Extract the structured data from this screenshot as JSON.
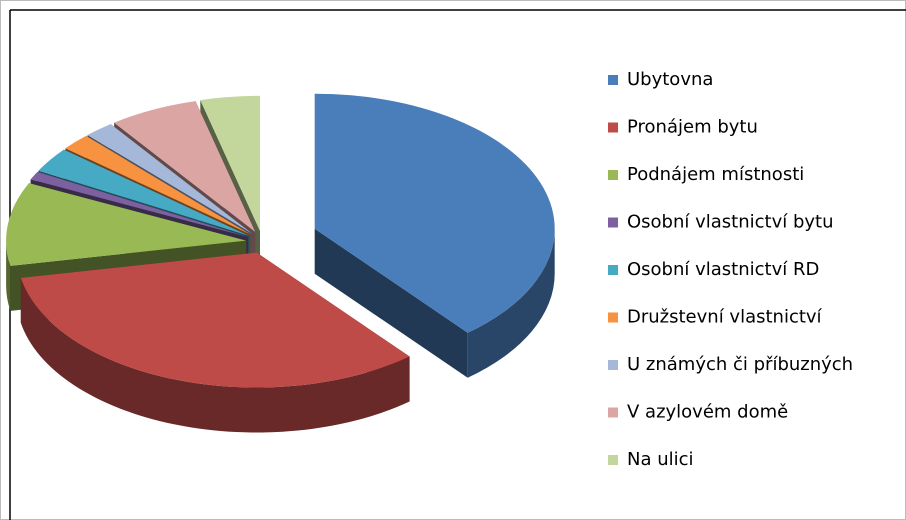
{
  "chart_data": {
    "type": "pie",
    "categories": [
      "Ubytovna",
      "Pronájem bytu",
      "Podnájem místnosti",
      "Osobní vlastnictví bytu",
      "Osobní vlastnictví RD",
      "Družstevní vlastnictví",
      "U známých či příbuzných",
      "V azylovém domě",
      "Na ulici"
    ],
    "values": [
      39,
      33,
      10,
      1,
      3,
      2,
      2,
      6,
      4
    ],
    "colors": [
      "#4a7ebb",
      "#be4b48",
      "#98b954",
      "#7d60a0",
      "#46aac5",
      "#f69240",
      "#a5b8da",
      "#dba5a4",
      "#c3d69b"
    ],
    "legend": "right"
  }
}
